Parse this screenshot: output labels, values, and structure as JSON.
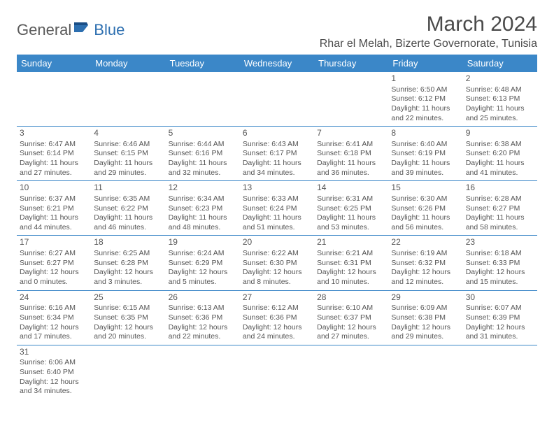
{
  "logo": {
    "general": "General",
    "blue": "Blue"
  },
  "title": "March 2024",
  "location": "Rhar el Melah, Bizerte Governorate, Tunisia",
  "colors": {
    "header_bg": "#3b87c8",
    "header_fg": "#ffffff",
    "border": "#3b87c8",
    "text": "#555555",
    "logo_gray": "#5a5a5a",
    "logo_blue": "#2d6fb0",
    "background": "#ffffff"
  },
  "weekdays": [
    "Sunday",
    "Monday",
    "Tuesday",
    "Wednesday",
    "Thursday",
    "Friday",
    "Saturday"
  ],
  "weeks": [
    [
      null,
      null,
      null,
      null,
      null,
      {
        "day": "1",
        "sunrise": "Sunrise: 6:50 AM",
        "sunset": "Sunset: 6:12 PM",
        "daylight": "Daylight: 11 hours and 22 minutes."
      },
      {
        "day": "2",
        "sunrise": "Sunrise: 6:48 AM",
        "sunset": "Sunset: 6:13 PM",
        "daylight": "Daylight: 11 hours and 25 minutes."
      }
    ],
    [
      {
        "day": "3",
        "sunrise": "Sunrise: 6:47 AM",
        "sunset": "Sunset: 6:14 PM",
        "daylight": "Daylight: 11 hours and 27 minutes."
      },
      {
        "day": "4",
        "sunrise": "Sunrise: 6:46 AM",
        "sunset": "Sunset: 6:15 PM",
        "daylight": "Daylight: 11 hours and 29 minutes."
      },
      {
        "day": "5",
        "sunrise": "Sunrise: 6:44 AM",
        "sunset": "Sunset: 6:16 PM",
        "daylight": "Daylight: 11 hours and 32 minutes."
      },
      {
        "day": "6",
        "sunrise": "Sunrise: 6:43 AM",
        "sunset": "Sunset: 6:17 PM",
        "daylight": "Daylight: 11 hours and 34 minutes."
      },
      {
        "day": "7",
        "sunrise": "Sunrise: 6:41 AM",
        "sunset": "Sunset: 6:18 PM",
        "daylight": "Daylight: 11 hours and 36 minutes."
      },
      {
        "day": "8",
        "sunrise": "Sunrise: 6:40 AM",
        "sunset": "Sunset: 6:19 PM",
        "daylight": "Daylight: 11 hours and 39 minutes."
      },
      {
        "day": "9",
        "sunrise": "Sunrise: 6:38 AM",
        "sunset": "Sunset: 6:20 PM",
        "daylight": "Daylight: 11 hours and 41 minutes."
      }
    ],
    [
      {
        "day": "10",
        "sunrise": "Sunrise: 6:37 AM",
        "sunset": "Sunset: 6:21 PM",
        "daylight": "Daylight: 11 hours and 44 minutes."
      },
      {
        "day": "11",
        "sunrise": "Sunrise: 6:35 AM",
        "sunset": "Sunset: 6:22 PM",
        "daylight": "Daylight: 11 hours and 46 minutes."
      },
      {
        "day": "12",
        "sunrise": "Sunrise: 6:34 AM",
        "sunset": "Sunset: 6:23 PM",
        "daylight": "Daylight: 11 hours and 48 minutes."
      },
      {
        "day": "13",
        "sunrise": "Sunrise: 6:33 AM",
        "sunset": "Sunset: 6:24 PM",
        "daylight": "Daylight: 11 hours and 51 minutes."
      },
      {
        "day": "14",
        "sunrise": "Sunrise: 6:31 AM",
        "sunset": "Sunset: 6:25 PM",
        "daylight": "Daylight: 11 hours and 53 minutes."
      },
      {
        "day": "15",
        "sunrise": "Sunrise: 6:30 AM",
        "sunset": "Sunset: 6:26 PM",
        "daylight": "Daylight: 11 hours and 56 minutes."
      },
      {
        "day": "16",
        "sunrise": "Sunrise: 6:28 AM",
        "sunset": "Sunset: 6:27 PM",
        "daylight": "Daylight: 11 hours and 58 minutes."
      }
    ],
    [
      {
        "day": "17",
        "sunrise": "Sunrise: 6:27 AM",
        "sunset": "Sunset: 6:27 PM",
        "daylight": "Daylight: 12 hours and 0 minutes."
      },
      {
        "day": "18",
        "sunrise": "Sunrise: 6:25 AM",
        "sunset": "Sunset: 6:28 PM",
        "daylight": "Daylight: 12 hours and 3 minutes."
      },
      {
        "day": "19",
        "sunrise": "Sunrise: 6:24 AM",
        "sunset": "Sunset: 6:29 PM",
        "daylight": "Daylight: 12 hours and 5 minutes."
      },
      {
        "day": "20",
        "sunrise": "Sunrise: 6:22 AM",
        "sunset": "Sunset: 6:30 PM",
        "daylight": "Daylight: 12 hours and 8 minutes."
      },
      {
        "day": "21",
        "sunrise": "Sunrise: 6:21 AM",
        "sunset": "Sunset: 6:31 PM",
        "daylight": "Daylight: 12 hours and 10 minutes."
      },
      {
        "day": "22",
        "sunrise": "Sunrise: 6:19 AM",
        "sunset": "Sunset: 6:32 PM",
        "daylight": "Daylight: 12 hours and 12 minutes."
      },
      {
        "day": "23",
        "sunrise": "Sunrise: 6:18 AM",
        "sunset": "Sunset: 6:33 PM",
        "daylight": "Daylight: 12 hours and 15 minutes."
      }
    ],
    [
      {
        "day": "24",
        "sunrise": "Sunrise: 6:16 AM",
        "sunset": "Sunset: 6:34 PM",
        "daylight": "Daylight: 12 hours and 17 minutes."
      },
      {
        "day": "25",
        "sunrise": "Sunrise: 6:15 AM",
        "sunset": "Sunset: 6:35 PM",
        "daylight": "Daylight: 12 hours and 20 minutes."
      },
      {
        "day": "26",
        "sunrise": "Sunrise: 6:13 AM",
        "sunset": "Sunset: 6:36 PM",
        "daylight": "Daylight: 12 hours and 22 minutes."
      },
      {
        "day": "27",
        "sunrise": "Sunrise: 6:12 AM",
        "sunset": "Sunset: 6:36 PM",
        "daylight": "Daylight: 12 hours and 24 minutes."
      },
      {
        "day": "28",
        "sunrise": "Sunrise: 6:10 AM",
        "sunset": "Sunset: 6:37 PM",
        "daylight": "Daylight: 12 hours and 27 minutes."
      },
      {
        "day": "29",
        "sunrise": "Sunrise: 6:09 AM",
        "sunset": "Sunset: 6:38 PM",
        "daylight": "Daylight: 12 hours and 29 minutes."
      },
      {
        "day": "30",
        "sunrise": "Sunrise: 6:07 AM",
        "sunset": "Sunset: 6:39 PM",
        "daylight": "Daylight: 12 hours and 31 minutes."
      }
    ],
    [
      {
        "day": "31",
        "sunrise": "Sunrise: 6:06 AM",
        "sunset": "Sunset: 6:40 PM",
        "daylight": "Daylight: 12 hours and 34 minutes."
      },
      null,
      null,
      null,
      null,
      null,
      null
    ]
  ]
}
